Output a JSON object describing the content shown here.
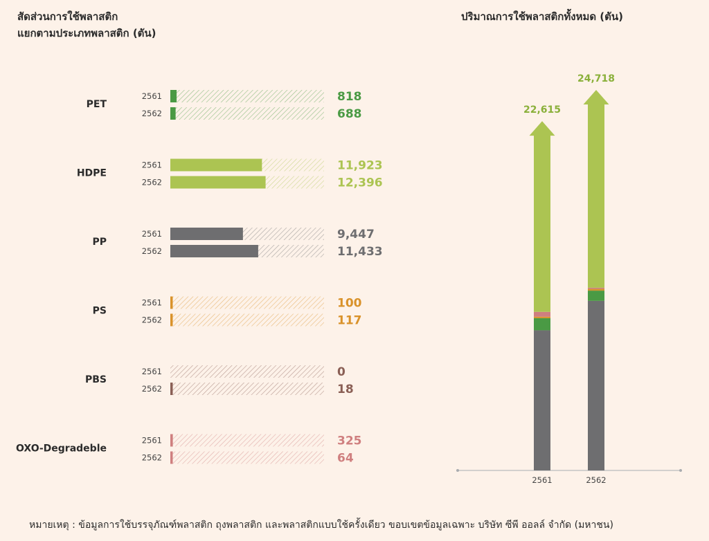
{
  "titles": {
    "left_line1": "สัดส่วนการใช้พลาสติก",
    "left_line2": "แยกตามประเภทพลาสติก (ตัน)",
    "right": "ปริมาณการใช้พลาสติกทั้งหมด (ตัน)"
  },
  "footnote": "หมายเหตุ : ข้อมูลการใช้บรรจุภัณฑ์พลาสติก ถุงพลาสติก และพลาสติกแบบใช้ครั้งเดียว ขอบเขตข้อมูลเฉพาะ บริษัท ซีพี ออลล์ จำกัด (มหาชน)",
  "chart_data": [
    {
      "type": "bar",
      "orientation": "horizontal",
      "title": "สัดส่วนการใช้พลาสติก แยกตามประเภทพลาสติก (ตัน)",
      "years": [
        "2561",
        "2562"
      ],
      "xlim": [
        0,
        20000
      ],
      "categories": [
        {
          "name": "PET",
          "color": "#4a9a44",
          "values": [
            818,
            688
          ],
          "labels": [
            "818",
            "688"
          ]
        },
        {
          "name": "HDPE",
          "color": "#acc452",
          "values": [
            11923,
            12396
          ],
          "labels": [
            "11,923",
            "12,396"
          ]
        },
        {
          "name": "PP",
          "color": "#6e6e70",
          "values": [
            9447,
            11433
          ],
          "labels": [
            "9,447",
            "11,433"
          ]
        },
        {
          "name": "PS",
          "color": "#d9922a",
          "values": [
            100,
            117
          ],
          "labels": [
            "100",
            "117"
          ]
        },
        {
          "name": "PBS",
          "color": "#8a5f55",
          "values": [
            0,
            18
          ],
          "labels": [
            "0",
            "18"
          ]
        },
        {
          "name": "OXO-Degradeble",
          "color": "#cf7f7f",
          "values": [
            325,
            64
          ],
          "labels": [
            "325",
            "64"
          ]
        }
      ]
    },
    {
      "type": "bar",
      "stacked": true,
      "title": "ปริมาณการใช้พลาสติกทั้งหมด (ตัน)",
      "categories": [
        "2561",
        "2562"
      ],
      "totals": [
        22615,
        24718
      ],
      "total_labels": [
        "22,615",
        "24,718"
      ],
      "series": [
        {
          "name": "PP",
          "color": "#6e6e70",
          "values": [
            9447,
            11433
          ]
        },
        {
          "name": "PET",
          "color": "#4a9a44",
          "values": [
            818,
            688
          ]
        },
        {
          "name": "PS",
          "color": "#d9922a",
          "values": [
            100,
            117
          ]
        },
        {
          "name": "PBS",
          "color": "#8a5f55",
          "values": [
            0,
            18
          ]
        },
        {
          "name": "OXO-Degradeble",
          "color": "#cf7f7f",
          "values": [
            325,
            64
          ]
        },
        {
          "name": "HDPE",
          "color": "#acc452",
          "values": [
            11923,
            12396
          ]
        }
      ]
    }
  ]
}
